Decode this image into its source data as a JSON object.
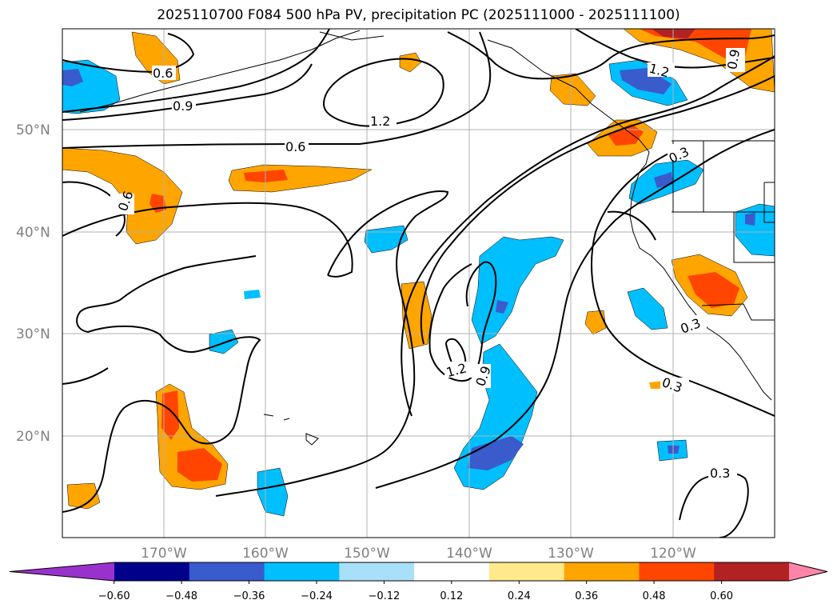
{
  "title": "2025110700 F084 500 hPa PV, precipitation PC (2025111000 - 2025111100)",
  "map": {
    "lat_ticks": [
      "50°N",
      "40°N",
      "30°N",
      "20°N"
    ],
    "lon_ticks": [
      "170°W",
      "160°W",
      "150°W",
      "140°W",
      "130°W",
      "120°W"
    ],
    "gridlines": true,
    "contour_field": "500 hPa PV",
    "contour_labels": [
      "0.6",
      "0.9",
      "1.2",
      "0.6",
      "0.6",
      "1.2",
      "0.9",
      "1.2",
      "0.9",
      "0.3",
      "0.3",
      "0.3",
      "0.3"
    ],
    "filled_field": "precipitation PC"
  },
  "colorbar": {
    "ticks": [
      "−0.60",
      "−0.48",
      "−0.36",
      "−0.24",
      "−0.12",
      "0.12",
      "0.24",
      "0.36",
      "0.48",
      "0.60"
    ],
    "colors": [
      "#9932cc",
      "#00008b",
      "#3a5bcc",
      "#00bfff",
      "#a8e0fa",
      "#ffffff",
      "#ffe98a",
      "#ffa500",
      "#ff4500",
      "#b22222",
      "#ff85a8"
    ],
    "extend": "both"
  }
}
